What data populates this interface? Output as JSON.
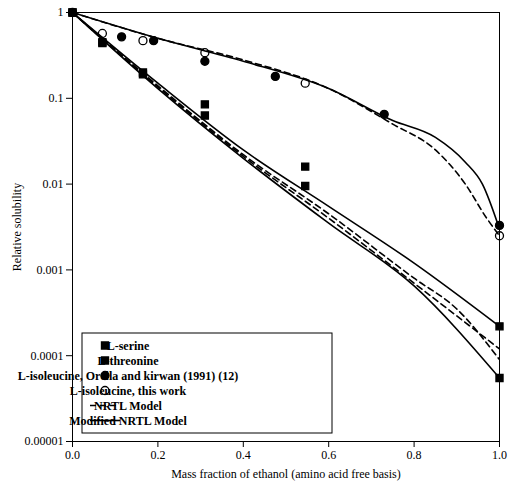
{
  "chart_data": {
    "type": "scatter",
    "x_label": "Mass fraction of ethanol (amino acid free basis)",
    "y_label": "Relative solubility",
    "log": "y",
    "grid": false,
    "legend": "lower left",
    "xlim": [
      0,
      1
    ],
    "xticks": [
      {
        "value": 0,
        "label": "0.0"
      },
      {
        "value": 0.2,
        "label": "0.2"
      },
      {
        "value": 0.4,
        "label": "0.4"
      },
      {
        "value": 0.6,
        "label": "0.6"
      },
      {
        "value": 0.8,
        "label": "0.8"
      },
      {
        "value": 1,
        "label": "1.0"
      }
    ],
    "ylim": [
      1e-05,
      1
    ],
    "yticks": [
      1e-05,
      0.0001,
      0.001,
      0.01,
      0.1,
      1
    ],
    "series": [
      {
        "name": "L-serine",
        "type": "scatter",
        "marker": "square",
        "color": "#000000",
        "x": [
          0,
          0.07,
          0.165,
          0.31,
          0.545,
          1.0
        ],
        "values": [
          1,
          0.45,
          0.2,
          0.085,
          0.016,
          0.00022
        ]
      },
      {
        "name": "L-threonine",
        "type": "scatter",
        "marker": "square",
        "color": "#000000",
        "x": [
          0,
          0.07,
          0.165,
          0.31,
          0.545,
          1.0
        ],
        "values": [
          1,
          0.44,
          0.19,
          0.063,
          0.0095,
          5.5e-05
        ]
      },
      {
        "name": "L-isoleucine, Orella and kirwan (1991) (12)",
        "type": "scatter",
        "marker": "circle",
        "color": "#000000",
        "x": [
          0,
          0.115,
          0.19,
          0.31,
          0.475,
          0.73,
          1.0
        ],
        "values": [
          1,
          0.52,
          0.47,
          0.27,
          0.18,
          0.065,
          0.0033
        ]
      },
      {
        "name": "L-isoleucine, this work",
        "type": "scatter",
        "marker": "circle-open",
        "color": "#000000",
        "x": [
          0.07,
          0.165,
          0.31,
          0.545,
          1.0
        ],
        "values": [
          0.57,
          0.47,
          0.34,
          0.15,
          0.0025
        ]
      },
      {
        "name": "NRTL Model",
        "type": "line",
        "line_style": "dashed",
        "color": "#000000",
        "x": [
          0,
          0.2,
          0.4,
          0.6,
          0.75,
          0.85,
          0.92,
          0.97,
          1.0
        ],
        "values": [
          1,
          0.5,
          0.28,
          0.13,
          0.05,
          0.025,
          0.01,
          0.004,
          0.0025
        ]
      },
      {
        "name": "NRTL Model",
        "type": "line",
        "line_style": "dashed",
        "color": "#000000",
        "x": [
          0,
          0.2,
          0.4,
          0.6,
          0.8,
          0.9,
          1.0
        ],
        "values": [
          1,
          0.14,
          0.022,
          0.0045,
          0.0008,
          0.00035,
          9e-05
        ]
      },
      {
        "name": "NRTL Model",
        "type": "line",
        "line_style": "dashed",
        "color": "#000000",
        "x": [
          0,
          0.2,
          0.4,
          0.6,
          0.8,
          1.0
        ],
        "values": [
          1,
          0.135,
          0.021,
          0.004,
          0.0007,
          0.00012
        ]
      },
      {
        "name": "Modified NRTL Model",
        "type": "line",
        "line_style": "solid",
        "color": "#000000",
        "x": [
          0,
          0.2,
          0.4,
          0.6,
          0.75,
          0.85,
          0.92,
          0.96,
          1.0
        ],
        "values": [
          1,
          0.5,
          0.27,
          0.13,
          0.055,
          0.035,
          0.018,
          0.01,
          0.003
        ]
      },
      {
        "name": "Modified NRTL Model",
        "type": "line",
        "line_style": "solid",
        "color": "#000000",
        "x": [
          0,
          0.2,
          0.4,
          0.6,
          0.8,
          1.0
        ],
        "values": [
          1,
          0.15,
          0.025,
          0.0055,
          0.0012,
          0.00022
        ]
      },
      {
        "name": "Modified NRTL Model",
        "type": "line",
        "line_style": "solid",
        "color": "#000000",
        "x": [
          0,
          0.2,
          0.4,
          0.6,
          0.8,
          1.0
        ],
        "values": [
          1,
          0.13,
          0.02,
          0.0035,
          0.00065,
          5.5e-05
        ]
      }
    ]
  }
}
